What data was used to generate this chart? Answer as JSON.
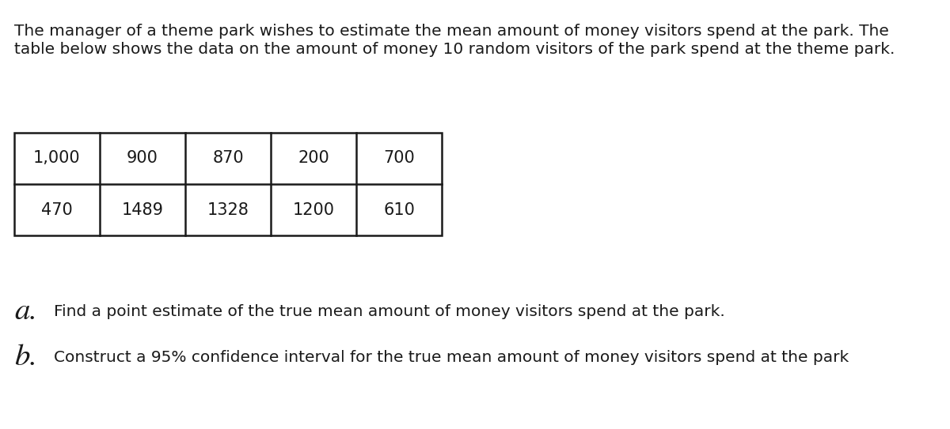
{
  "intro_text_line1": "The manager of a theme park wishes to estimate the mean amount of money visitors spend at the park. The",
  "intro_text_line2": "table below shows the data on the amount of money 10 random visitors of the park spend at the theme park.",
  "table_row1": [
    "1,000",
    "900",
    "870",
    "200",
    "700"
  ],
  "table_row2": [
    "470",
    "1489",
    "1328",
    "1200",
    "610"
  ],
  "question_a_label": "a.",
  "question_a_text": "Find a point estimate of the true mean amount of money visitors spend at the park.",
  "question_b_label": "b.",
  "question_b_text": "Construct a 95% confidence interval for the true mean amount of money visitors spend at the park",
  "bg_color": "#ffffff",
  "text_color": "#1a1a1a",
  "font_size_body": 14.5,
  "font_size_table": 15,
  "font_size_qa_label": 28,
  "font_size_qa_text": 14.5
}
